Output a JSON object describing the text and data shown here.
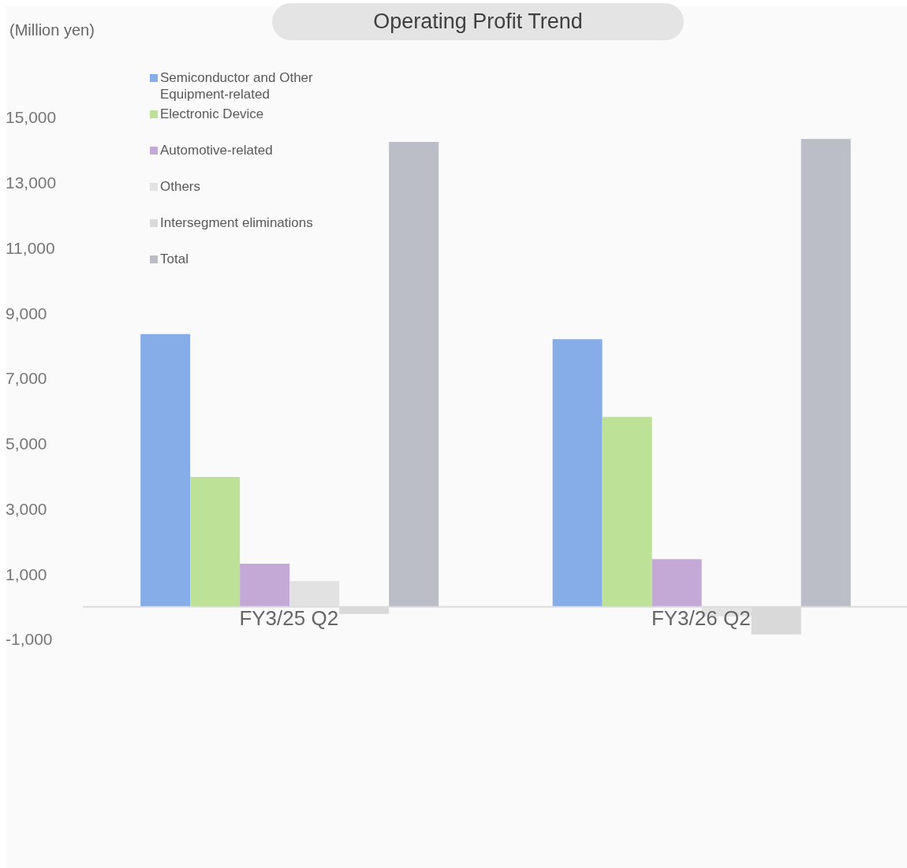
{
  "chart_data": {
    "type": "bar",
    "title": "Operating Profit Trend",
    "ylabel": "(Million yen)",
    "categories": [
      "FY3/25 Q2",
      "FY3/26 Q2"
    ],
    "series": [
      {
        "name": "Semiconductor and Other Equipment-related",
        "color": "#86ade8",
        "values": [
          8360,
          8200
        ]
      },
      {
        "name": "Electronic Device",
        "color": "#bde196",
        "values": [
          3980,
          5820
        ]
      },
      {
        "name": "Automotive-related",
        "color": "#c4a9d7",
        "values": [
          1320,
          1460
        ]
      },
      {
        "name": "Others",
        "color": "#e2e2e2",
        "values": [
          790,
          -300
        ]
      },
      {
        "name": "Intersegment eliminations",
        "color": "#d9d9d9",
        "values": [
          -220,
          -850
        ]
      },
      {
        "name": "Total",
        "color": "#bbbec6",
        "values": [
          14250,
          14340
        ]
      }
    ],
    "ylim": [
      -1000,
      15000
    ],
    "yticks": [
      {
        "value": -1000,
        "label": "-1,000"
      },
      {
        "value": 1000,
        "label": "1,000"
      },
      {
        "value": 3000,
        "label": "3,000"
      },
      {
        "value": 5000,
        "label": "5,000"
      },
      {
        "value": 7000,
        "label": "7,000"
      },
      {
        "value": 9000,
        "label": "9,000"
      },
      {
        "value": 11000,
        "label": "11,000"
      },
      {
        "value": 13000,
        "label": "13,000"
      },
      {
        "value": 15000,
        "label": "15,000"
      }
    ],
    "grid": false,
    "legend": "top left"
  }
}
